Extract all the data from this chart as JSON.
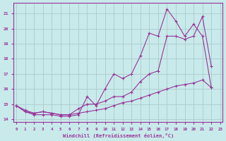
{
  "xlabel": "Windchill (Refroidissement éolien,°C)",
  "bg_color": "#c8eaea",
  "line_color": "#993399",
  "grid_color": "#aacccc",
  "line1_x": [
    0,
    1,
    2,
    3,
    4,
    5,
    6,
    7,
    8,
    9,
    10,
    11,
    12,
    13,
    14,
    15,
    16,
    17,
    18,
    19,
    20,
    21,
    22
  ],
  "line1_y": [
    14.9,
    14.5,
    14.3,
    14.3,
    14.3,
    14.2,
    14.2,
    14.3,
    15.5,
    14.9,
    16.0,
    17.0,
    16.7,
    17.0,
    18.2,
    19.7,
    19.5,
    21.3,
    20.5,
    19.5,
    20.3,
    19.5,
    16.1
  ],
  "line2_x": [
    0,
    1,
    2,
    3,
    4,
    5,
    6,
    7,
    8,
    9,
    10,
    11,
    12,
    13,
    14,
    15,
    16,
    17,
    18,
    19,
    20,
    21,
    22
  ],
  "line2_y": [
    14.9,
    14.5,
    14.4,
    14.5,
    14.4,
    14.3,
    14.3,
    14.7,
    15.0,
    15.0,
    15.2,
    15.5,
    15.5,
    15.8,
    16.5,
    17.0,
    17.2,
    19.5,
    19.5,
    19.3,
    19.5,
    20.8,
    17.5
  ],
  "line3_x": [
    0,
    1,
    2,
    3,
    4,
    5,
    6,
    7,
    8,
    9,
    10,
    11,
    12,
    13,
    14,
    15,
    16,
    17,
    18,
    19,
    20,
    21,
    22
  ],
  "line3_y": [
    14.9,
    14.6,
    14.4,
    14.5,
    14.4,
    14.3,
    14.3,
    14.4,
    14.5,
    14.6,
    14.7,
    14.9,
    15.1,
    15.2,
    15.4,
    15.6,
    15.8,
    16.0,
    16.2,
    16.3,
    16.4,
    16.6,
    16.1
  ],
  "ylim": [
    13.8,
    21.7
  ],
  "xlim": [
    -0.3,
    23.3
  ],
  "yticks": [
    14,
    15,
    16,
    17,
    18,
    19,
    20,
    21
  ],
  "xticks": [
    0,
    1,
    2,
    3,
    4,
    5,
    6,
    7,
    8,
    9,
    10,
    11,
    12,
    13,
    14,
    15,
    16,
    17,
    18,
    19,
    20,
    21,
    22,
    23
  ]
}
